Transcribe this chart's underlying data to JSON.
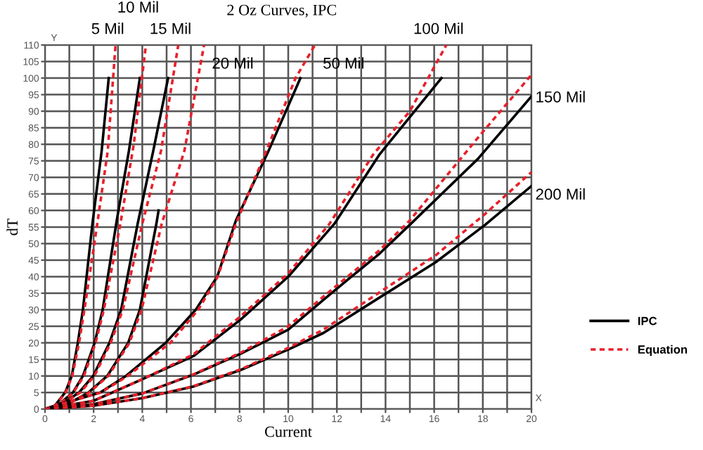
{
  "chart_data": {
    "type": "line",
    "title": "2 Oz Curves, IPC",
    "xlabel": "Current",
    "ylabel": "dT",
    "xlim": [
      0,
      20
    ],
    "ylim": [
      0,
      110
    ],
    "xticks": [
      0,
      {
        "value": 1,
        "label": null
      },
      2,
      {
        "value": 3,
        "label": null
      },
      4,
      {
        "value": 5,
        "label": null
      },
      6,
      {
        "value": 7,
        "label": null
      },
      8,
      {
        "value": 9,
        "label": null
      },
      10,
      {
        "value": 11,
        "label": null
      },
      12,
      {
        "value": 13,
        "label": null
      },
      14,
      {
        "value": 15,
        "label": null
      },
      16,
      {
        "value": 17,
        "label": null
      },
      18,
      {
        "value": 19,
        "label": null
      },
      20
    ],
    "yticks": [
      0,
      5,
      10,
      15,
      20,
      25,
      30,
      35,
      40,
      45,
      50,
      55,
      60,
      65,
      70,
      75,
      80,
      85,
      90,
      95,
      100,
      105,
      110
    ],
    "grid": true,
    "legend": "right",
    "marker": "none",
    "series": [
      {
        "name": "IPC",
        "color": "#000000",
        "line_style": "solid",
        "x": [
          0,
          0.4,
          0.83,
          1.1,
          1.35,
          1.56,
          1.95,
          2.33,
          2.62
        ],
        "values": [
          0,
          1,
          5,
          10,
          20,
          30,
          56,
          78,
          100
        ]
      },
      {
        "name": "Equation",
        "color": "#e8202a",
        "line_style": "dashed",
        "x": [
          0,
          0.42,
          0.85,
          1.12,
          1.4,
          1.62,
          2.15,
          2.58,
          2.9
        ],
        "values": [
          0,
          1,
          5,
          10,
          20,
          30,
          56,
          78,
          110
        ]
      },
      {
        "color": "#000000",
        "line_style": "solid",
        "x": [
          0,
          0.5,
          1.15,
          1.56,
          2.04,
          2.37,
          2.95,
          3.45,
          3.9
        ],
        "values": [
          0,
          1,
          5,
          10,
          20,
          30,
          57,
          78,
          100
        ]
      },
      {
        "color": "#e8202a",
        "line_style": "dashed",
        "x": [
          0,
          0.52,
          1.17,
          1.6,
          2.08,
          2.42,
          3.1,
          3.65,
          4.15
        ],
        "values": [
          0,
          1,
          5,
          10,
          20,
          30,
          56,
          80,
          110
        ]
      },
      {
        "color": "#000000",
        "line_style": "solid",
        "x": [
          0,
          0.6,
          1.4,
          1.98,
          2.65,
          3.13,
          3.81,
          4.45,
          5.06
        ],
        "values": [
          0,
          1,
          5,
          10,
          20,
          30,
          56,
          78,
          100
        ]
      },
      {
        "color": "#e8202a",
        "line_style": "dashed",
        "x": [
          0,
          0.62,
          1.45,
          2.03,
          2.7,
          3.2,
          4.0,
          4.77,
          5.48
        ],
        "values": [
          0,
          1,
          5,
          10,
          20,
          30,
          56,
          78,
          110
        ]
      },
      {
        "color": "#000000",
        "line_style": "solid",
        "x": [
          0,
          0.8,
          1.79,
          2.56,
          3.42,
          3.9,
          4.58,
          4.67
        ],
        "values": [
          0,
          1,
          5,
          10,
          20,
          30,
          56,
          60
        ]
      },
      {
        "color": "#e8202a",
        "line_style": "dashed",
        "x": [
          0,
          0.82,
          1.82,
          2.6,
          3.47,
          3.97,
          4.8,
          5.73,
          6.54
        ],
        "values": [
          0,
          1,
          5,
          10,
          20,
          30,
          56,
          78,
          110
        ]
      },
      {
        "color": "#000000",
        "line_style": "solid",
        "x": [
          0,
          0.9,
          2.27,
          3.33,
          4.96,
          6.2,
          7.08,
          7.85,
          9.19,
          10.5
        ],
        "values": [
          0,
          2,
          5,
          10,
          20,
          30,
          40,
          57,
          78,
          100
        ]
      },
      {
        "color": "#e8202a",
        "line_style": "dashed",
        "x": [
          0,
          0.9,
          2.3,
          3.4,
          5.15,
          6.3,
          7.1,
          7.85,
          9.1,
          10.3,
          11.1
        ],
        "values": [
          0,
          2,
          5,
          10,
          20,
          30,
          40,
          56,
          78,
          100,
          110
        ]
      },
      {
        "color": "#000000",
        "line_style": "solid",
        "x": [
          0,
          2,
          4,
          6.1,
          8.04,
          10,
          11.9,
          13.76,
          16.3
        ],
        "values": [
          0,
          2.5,
          9,
          16,
          27,
          40,
          56,
          77,
          100
        ]
      },
      {
        "color": "#e8202a",
        "line_style": "dashed",
        "x": [
          0,
          2,
          4,
          6.1,
          8.04,
          10,
          11.7,
          13.5,
          15,
          16.5
        ],
        "values": [
          0,
          2.5,
          9,
          16.5,
          28,
          41,
          56,
          77,
          90,
          110
        ]
      },
      {
        "color": "#000000",
        "line_style": "solid",
        "x": [
          0,
          2,
          4,
          6.1,
          8.04,
          10,
          11.45,
          12.6,
          13.76,
          15,
          17.8,
          20
        ],
        "values": [
          0,
          1.5,
          4.7,
          10.4,
          16.7,
          24,
          33,
          40,
          47,
          55.7,
          75.6,
          94.5
        ]
      },
      {
        "color": "#e8202a",
        "line_style": "dashed",
        "x": [
          0,
          2,
          4,
          6.1,
          8.04,
          10,
          11.45,
          12.6,
          13.76,
          15,
          17.8,
          20
        ],
        "values": [
          0,
          1.5,
          4.7,
          10.5,
          17,
          25,
          34,
          41,
          48,
          57,
          82,
          101
        ]
      },
      {
        "color": "#000000",
        "line_style": "solid",
        "x": [
          0,
          2,
          4,
          6.1,
          8.04,
          10,
          11.45,
          13,
          16.07,
          18.1,
          20
        ],
        "values": [
          0,
          1,
          3.3,
          6.8,
          11.8,
          18,
          23,
          30.2,
          44.4,
          55.7,
          67.4
        ]
      },
      {
        "color": "#e8202a",
        "line_style": "dashed",
        "x": [
          0,
          2,
          4,
          6.1,
          8.04,
          10,
          11.45,
          13,
          16.07,
          18.1,
          20
        ],
        "values": [
          0,
          1,
          3.3,
          6.9,
          12,
          18.5,
          24,
          31.6,
          46.5,
          59,
          71.6
        ]
      }
    ],
    "annotations": [
      "5 Mil",
      "10 Mil",
      "15 Mil",
      "20 Mil",
      "50 Mil",
      "100 Mil",
      "150 Mil",
      "200 Mil",
      "Y",
      "X"
    ]
  }
}
